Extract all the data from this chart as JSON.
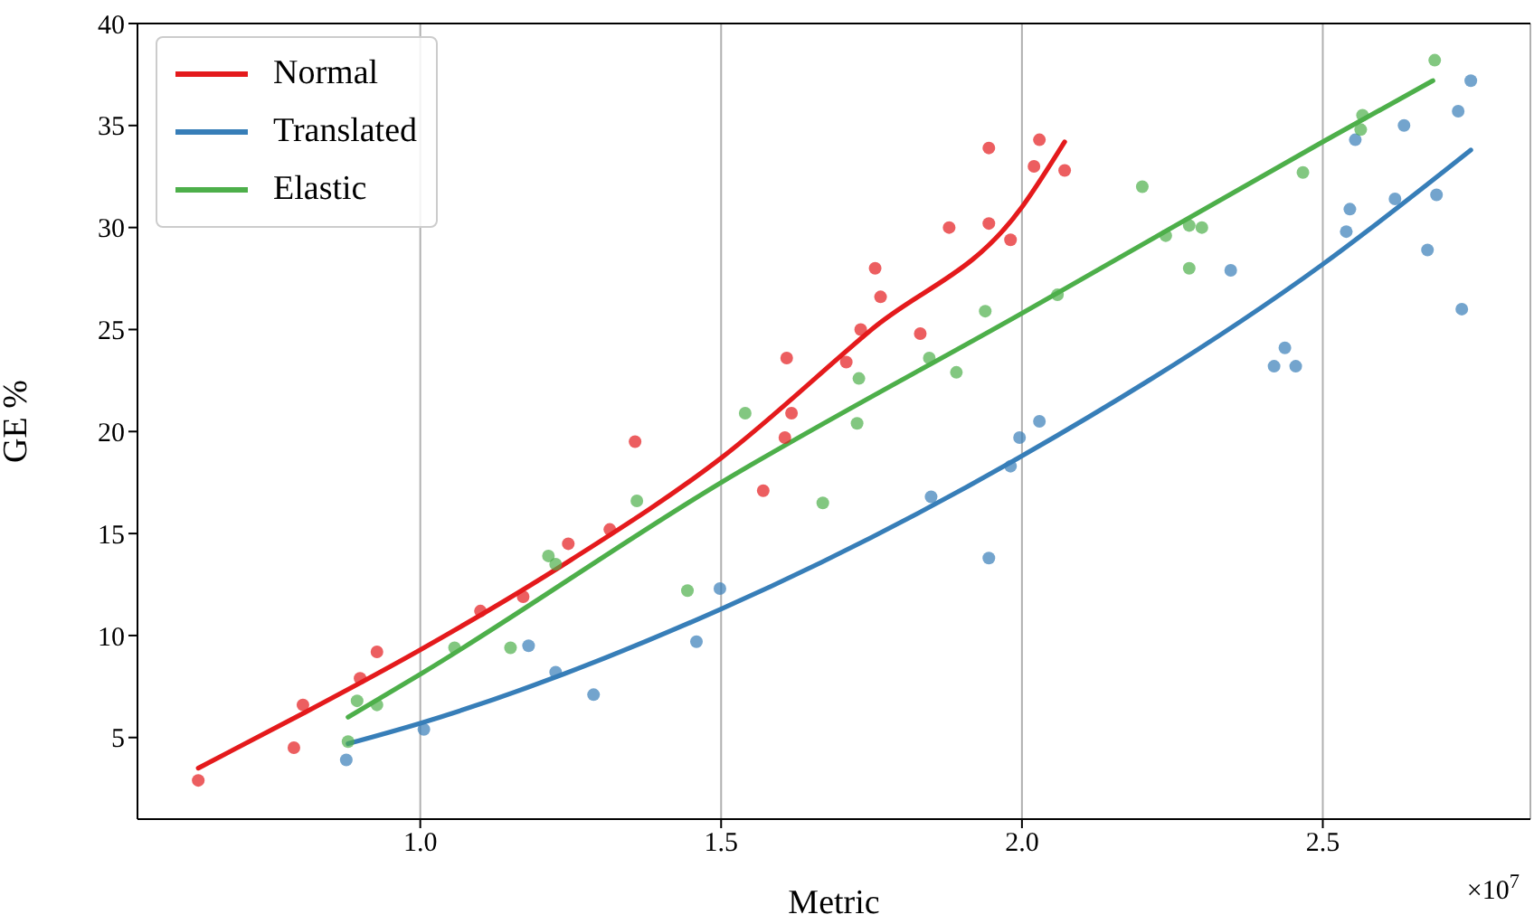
{
  "chart_data": {
    "type": "scatter",
    "xlabel": "Metric",
    "ylabel": "GE %",
    "annotations": [
      "×10$^{7}$"
    ],
    "xlim": [
      0.53,
      2.845
    ],
    "xticks": [
      {
        "value": 1.0,
        "label": "1.0"
      },
      {
        "value": 1.5,
        "label": "1.5"
      },
      {
        "value": 2.0,
        "label": "2.0"
      },
      {
        "value": 2.5,
        "label": "2.5"
      }
    ],
    "ylim": [
      1,
      40
    ],
    "yticks": [
      5,
      10,
      15,
      20,
      25,
      30,
      35,
      40
    ],
    "grid": "x",
    "legend": "top left",
    "series": [
      {
        "marker": "circle",
        "color": "#e41a1c",
        "x": [
          0.631,
          0.79,
          0.805,
          0.9,
          0.928,
          1.1,
          1.171,
          1.246,
          1.315,
          1.357,
          1.57,
          1.606,
          1.609,
          1.617,
          1.708,
          1.732,
          1.756,
          1.765,
          1.831,
          1.879,
          1.945,
          1.945,
          1.981,
          2.02,
          2.029,
          2.071
        ],
        "values": [
          2.9,
          4.5,
          6.6,
          7.9,
          9.2,
          11.2,
          11.9,
          14.5,
          15.2,
          19.5,
          17.1,
          19.7,
          23.6,
          20.9,
          23.4,
          25.0,
          28.0,
          26.6,
          24.8,
          30.0,
          33.9,
          30.2,
          29.4,
          33.0,
          34.3,
          32.8
        ]
      },
      {
        "marker": "circle",
        "color": "#377eb8",
        "x": [
          0.877,
          1.006,
          1.18,
          1.225,
          1.288,
          1.459,
          1.498,
          1.849,
          1.945,
          1.981,
          1.996,
          2.029,
          2.347,
          2.437,
          2.419,
          2.455,
          2.539,
          2.545,
          2.554,
          2.62,
          2.635,
          2.674,
          2.689,
          2.731,
          2.725,
          2.746
        ],
        "values": [
          3.9,
          5.4,
          9.5,
          8.2,
          7.1,
          9.7,
          12.3,
          16.8,
          13.8,
          18.3,
          19.7,
          20.5,
          27.9,
          24.1,
          23.2,
          23.2,
          29.8,
          30.9,
          34.3,
          31.4,
          35.0,
          28.9,
          31.6,
          26.0,
          35.7,
          37.2
        ]
      },
      {
        "marker": "circle",
        "color": "#4daf4a",
        "x": [
          0.88,
          0.895,
          0.928,
          1.057,
          1.15,
          1.213,
          1.225,
          1.36,
          1.444,
          1.54,
          1.669,
          1.726,
          1.729,
          1.846,
          1.891,
          1.939,
          2.059,
          2.2,
          2.239,
          2.278,
          2.299,
          2.278,
          2.467,
          2.566,
          2.563,
          2.686
        ],
        "values": [
          4.8,
          6.8,
          6.6,
          9.4,
          9.4,
          13.9,
          13.5,
          16.6,
          12.2,
          20.9,
          16.5,
          20.4,
          22.6,
          23.6,
          22.9,
          25.9,
          26.7,
          32.0,
          29.6,
          30.1,
          30.0,
          28.0,
          32.7,
          35.5,
          34.8,
          38.2
        ]
      },
      {
        "type": "line",
        "marker": "none",
        "name": "Normal",
        "color": "#e41a1c",
        "x": [
          0.631,
          0.8,
          1.0,
          1.25,
          1.5,
          1.75,
          2.0,
          2.071
        ],
        "values": [
          3.5,
          6.1,
          9.3,
          13.7,
          18.7,
          25.0,
          31.0,
          34.2
        ]
      },
      {
        "type": "line",
        "marker": "none",
        "name": "Translated",
        "color": "#377eb8",
        "x": [
          0.88,
          1.0,
          1.5,
          2.0,
          2.5,
          2.746
        ],
        "values": [
          4.7,
          5.7,
          11.3,
          18.8,
          28.2,
          33.8
        ]
      },
      {
        "type": "line",
        "marker": "none",
        "name": "Elastic",
        "color": "#4daf4a",
        "x": [
          0.88,
          1.0,
          1.5,
          2.0,
          2.5,
          2.683
        ],
        "values": [
          6.0,
          8.1,
          17.5,
          25.8,
          34.2,
          37.2
        ]
      }
    ]
  }
}
